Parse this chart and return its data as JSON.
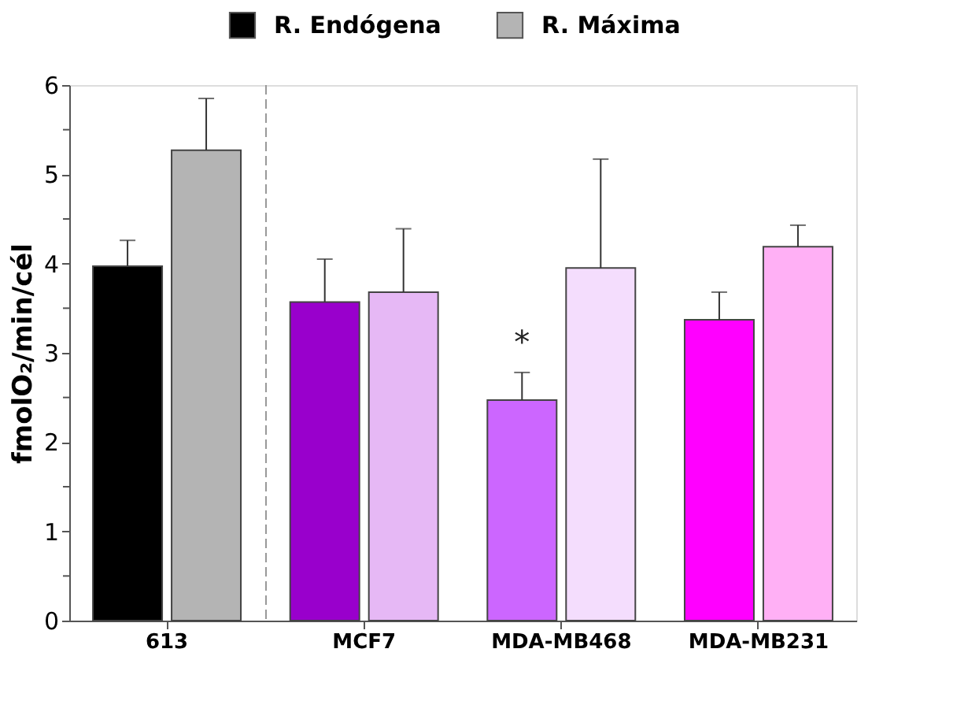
{
  "chart_data": {
    "type": "bar",
    "ylabel": "fmolO₂/min/cél",
    "categories": [
      "613",
      "MCF7",
      "MDA-MB468",
      "MDA-MB231"
    ],
    "series": [
      {
        "name": "R. Endógena",
        "color": "#000000",
        "colors": [
          "#000000",
          "#9900cc",
          "#cc66ff",
          "#ff00ff"
        ],
        "values": [
          3.97,
          3.57,
          2.47,
          3.37
        ],
        "errors": [
          0.29,
          0.48,
          0.31,
          0.31
        ]
      },
      {
        "name": "R. Máxima",
        "color": "#b4b4b4",
        "colors": [
          "#b4b4b4",
          "#e6b8f5",
          "#f4ddfd",
          "#ffb0f5"
        ],
        "values": [
          5.27,
          3.68,
          3.95,
          4.19
        ],
        "errors": [
          0.58,
          0.71,
          1.22,
          0.24
        ]
      }
    ],
    "ylim": [
      0,
      6
    ],
    "yticks": [
      0,
      {
        "value": 0.5,
        "label": null
      },
      1,
      {
        "value": 1.5,
        "label": null
      },
      2,
      {
        "value": 2.5,
        "label": null
      },
      3,
      {
        "value": 3.5,
        "label": null
      },
      4,
      {
        "value": 4.5,
        "label": null
      },
      5,
      {
        "value": 5.5,
        "label": null
      },
      6
    ],
    "annotations": [
      {
        "text": "*",
        "x": "MDA-MB468",
        "y": 3.11
      }
    ],
    "legend": "top",
    "grid": false
  }
}
